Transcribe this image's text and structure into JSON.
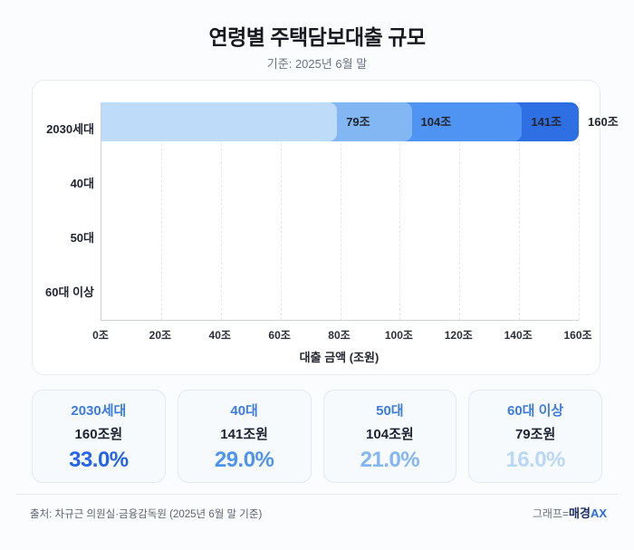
{
  "header": {
    "title": "연령별 주택담보대출 규모",
    "subtitle": "기준: 2025년 6월 말"
  },
  "chart_data": {
    "type": "bar",
    "orientation": "horizontal",
    "title": "연령별 주택담보대출 규모",
    "subtitle": "기준: 2025년 6월 말",
    "categories": [
      "2030세대",
      "40대",
      "50대",
      "60대 이상"
    ],
    "values": [
      160,
      141,
      104,
      79
    ],
    "value_labels": [
      "160조",
      "141조",
      "104조",
      "79조"
    ],
    "xlabel": "대출 금액 (조원)",
    "ylabel": "",
    "xlim": [
      0,
      160
    ],
    "xticks": [
      0,
      20,
      40,
      60,
      80,
      100,
      120,
      140,
      160
    ],
    "xtick_labels": [
      "0조",
      "20조",
      "40조",
      "60조",
      "80조",
      "100조",
      "120조",
      "140조",
      "160조"
    ],
    "grid": true,
    "legend": false,
    "bar_colors": [
      "#2f6fe4",
      "#4f93f3",
      "#83b7f3",
      "#bedbfa"
    ]
  },
  "cards": [
    {
      "label": "2030세대",
      "value": "160조원",
      "percent": "33.0%",
      "percent_color": "#2463eb"
    },
    {
      "label": "40대",
      "value": "141조원",
      "percent": "29.0%",
      "percent_color": "#4f93f0"
    },
    {
      "label": "50대",
      "value": "104조원",
      "percent": "21.0%",
      "percent_color": "#83b6f2"
    },
    {
      "label": "60대 이상",
      "value": "79조원",
      "percent": "16.0%",
      "percent_color": "#b9d8f7"
    }
  ],
  "footer": {
    "source": "출처: 차규근 의원실·금융감독원 (2025년 6월 말 기준)",
    "credit_prefix": "그래프=",
    "credit_brand": "매경",
    "credit_suffix": "AX"
  }
}
